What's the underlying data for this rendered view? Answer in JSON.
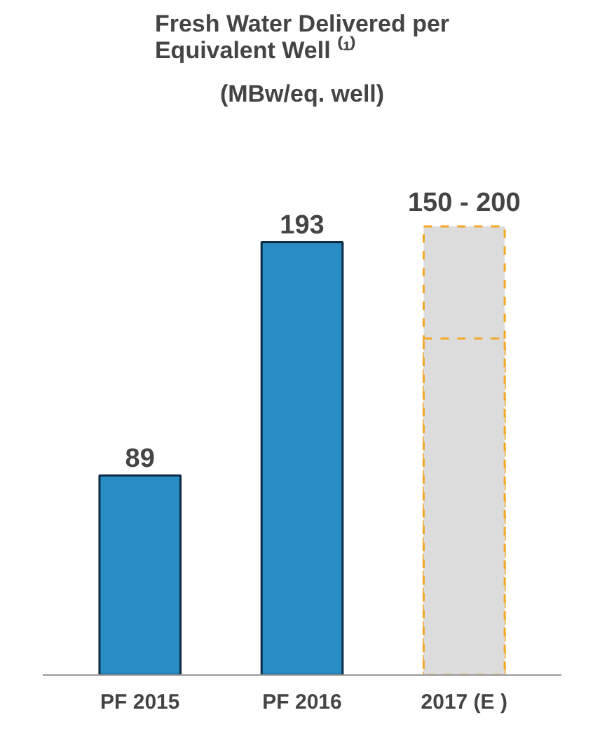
{
  "chart_data": {
    "type": "bar",
    "title": "Fresh Water Delivered per\nEquivalent Well ⁽¹⁾",
    "subtitle": "(MBw/eq. well)",
    "annotations": [
      {
        "text": "150 - 200",
        "x": "2017 (E )",
        "y": 200
      }
    ],
    "categories": [
      "PF 2015",
      "PF 2016",
      "2017 (E )"
    ],
    "series": [
      {
        "color": "#2a8cc4",
        "line_style": "solid",
        "values": [
          89,
          193,
          null
        ],
        "value_labels": [
          "89",
          "193",
          null
        ]
      },
      {
        "color": "#dcdcdc",
        "line_style": "dashed",
        "values": [
          null,
          null,
          200
        ]
      },
      {
        "color": "#dcdcdc",
        "line_style": "dashed",
        "values": [
          null,
          null,
          150
        ]
      }
    ]
  }
}
